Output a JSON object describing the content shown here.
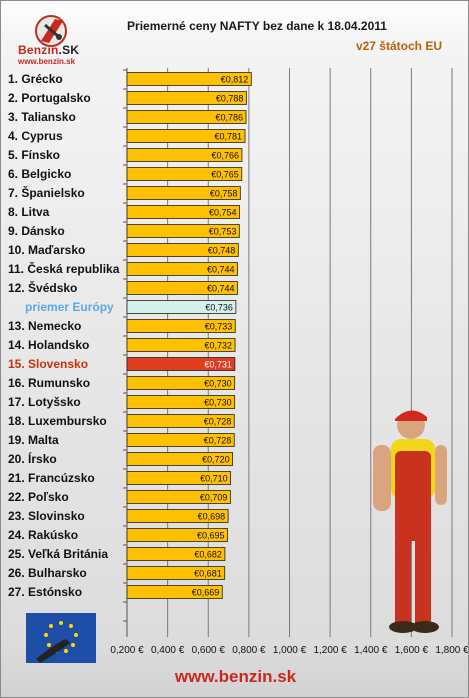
{
  "header": {
    "title": "Priemerné ceny NAFTY bez dane k 18.04.2011",
    "subtitle": "v27 štátoch EU",
    "logo_text": "Benzin",
    "logo_text_suffix": ".SK",
    "logo_url": "www.benzin.sk"
  },
  "footer": {
    "url": "www.benzin.sk"
  },
  "colors": {
    "bar": "#ffc000",
    "bar_highlight": "#e03c1e",
    "bar_average": "#d6f1ec",
    "label_highlight": "#c8330f",
    "label_average": "#5aa9e6"
  },
  "chart_data": {
    "type": "bar",
    "orientation": "horizontal",
    "title": "Priemerné ceny NAFTY bez dane k 18.04.2011",
    "subtitle": "v27 štátoch EU",
    "categories": [
      "1. Grécko",
      "2. Portugalsko",
      "3. Taliansko",
      "4. Cyprus",
      "5. Fínsko",
      "6. Belgicko",
      "7. Španielsko",
      "8. Litva",
      "9. Dánsko",
      "10. Maďarsko",
      "11. Česká republika",
      "12. Švédsko",
      "priemer Európy",
      "13. Nemecko",
      "14. Holandsko",
      "15. Slovensko",
      "16. Rumunsko",
      "17. Lotyšsko",
      "18. Luxembursko",
      "19. Malta",
      "20. Írsko",
      "21. Francúzsko",
      "22. Poľsko",
      "23. Slovinsko",
      "24. Rakúsko",
      "25. Veľká Británia",
      "26. Bulharsko",
      "27. Estónsko"
    ],
    "values": [
      0.812,
      0.788,
      0.786,
      0.781,
      0.766,
      0.765,
      0.758,
      0.754,
      0.753,
      0.748,
      0.744,
      0.744,
      0.736,
      0.733,
      0.732,
      0.731,
      0.73,
      0.73,
      0.728,
      0.728,
      0.72,
      0.71,
      0.709,
      0.698,
      0.695,
      0.682,
      0.681,
      0.669
    ],
    "value_labels": [
      "€0,812",
      "€0,788",
      "€0,786",
      "€0,781",
      "€0,766",
      "€0,765",
      "€0,758",
      "€0,754",
      "€0,753",
      "€0,748",
      "€0,744",
      "€0,744",
      "€0,736",
      "€0,733",
      "€0,732",
      "€0,731",
      "€0,730",
      "€0,730",
      "€0,728",
      "€0,728",
      "€0,720",
      "€0,710",
      "€0,709",
      "€0,698",
      "€0,695",
      "€0,682",
      "€0,681",
      "€0,669"
    ],
    "highlight": {
      "15. Slovensko": "highlight",
      "priemer Európy": "average"
    },
    "xlim": [
      0.2,
      1.8
    ],
    "xticks": [
      0.2,
      0.4,
      0.6,
      0.8,
      1.0,
      1.2,
      1.4,
      1.6,
      1.8
    ],
    "xtick_labels": [
      "0,200 €",
      "0,400 €",
      "0,600 €",
      "0,800 €",
      "1,000 €",
      "1,200 €",
      "1,400 €",
      "1,600 €",
      "1,800 €"
    ],
    "grid": "vertical",
    "xlabel": "",
    "ylabel": ""
  }
}
